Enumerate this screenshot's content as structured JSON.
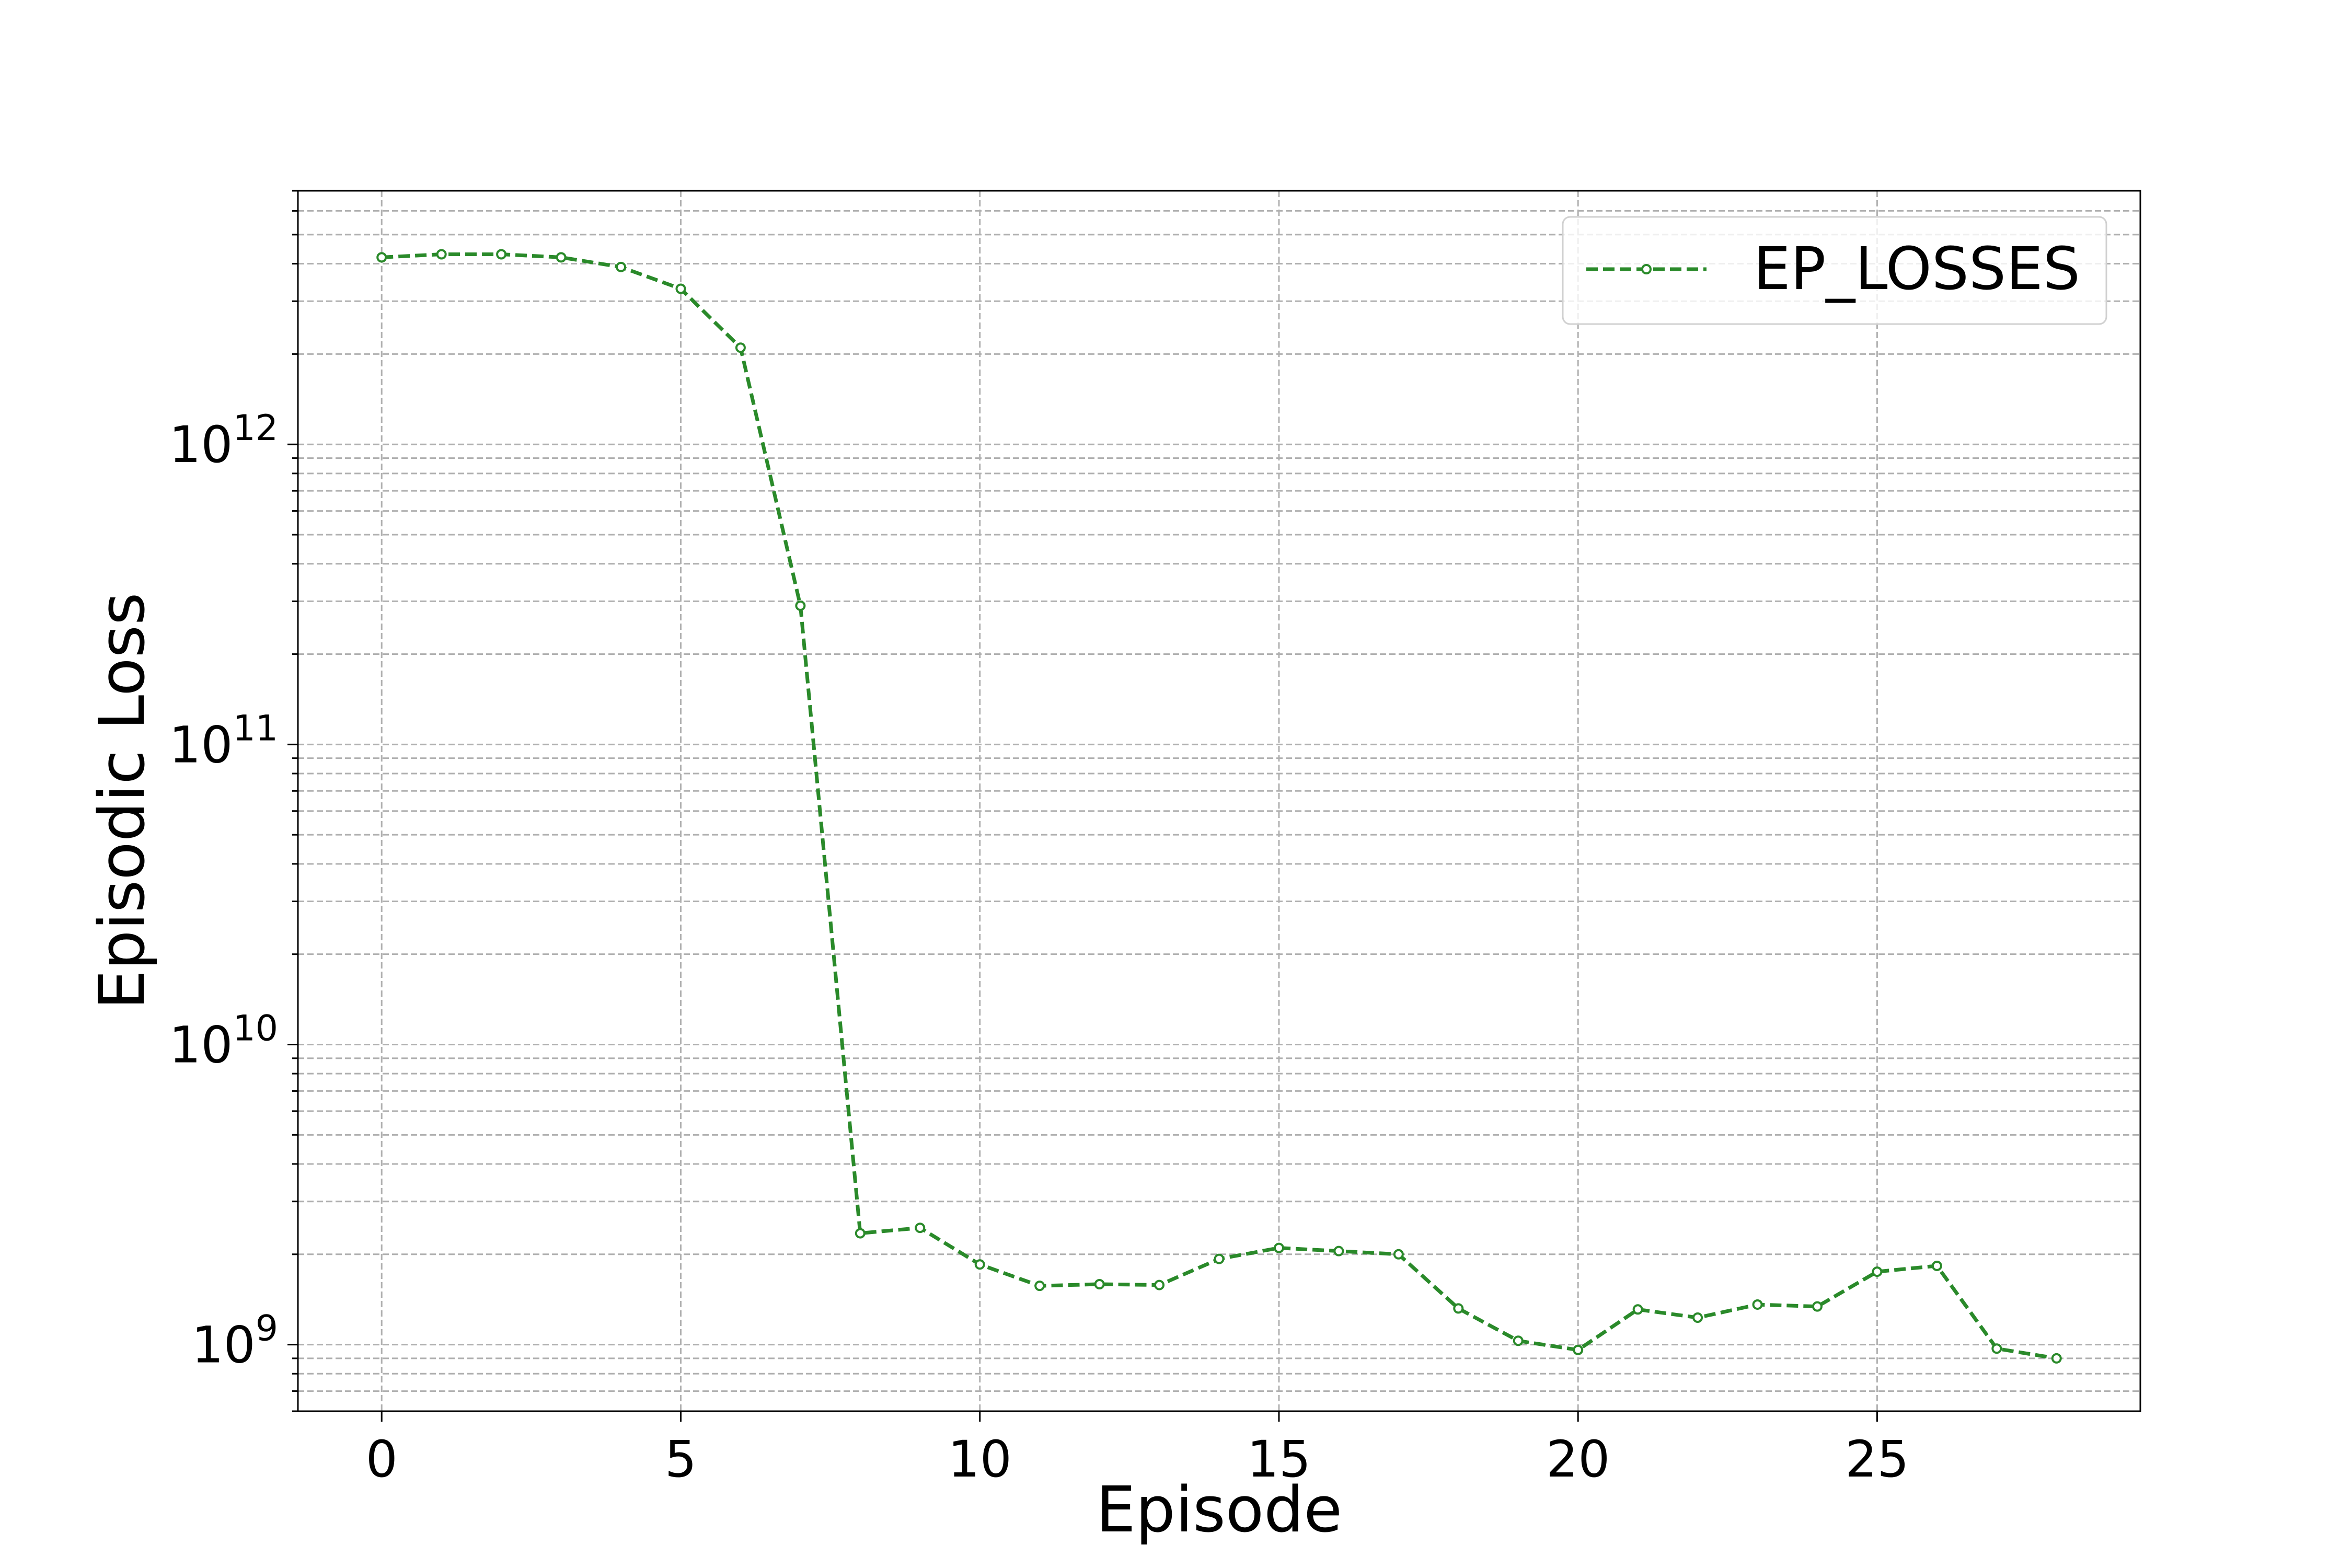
{
  "chart_data": {
    "type": "line",
    "xlabel": "Episode",
    "ylabel": "Episodic Loss",
    "xlim": [
      -1.4,
      29.4
    ],
    "ylim": [
      600000000,
      7000000000000
    ],
    "yscale": "log",
    "grid": "both (major and minor), dashed, light grey",
    "legend": {
      "position": "top-right",
      "entries": [
        "EP_LOSSES"
      ]
    },
    "x_ticks": [
      "0",
      "5",
      "10",
      "15",
      "20",
      "25"
    ],
    "y_ticks": [
      {
        "base": "10",
        "exp": "9"
      },
      {
        "base": "10",
        "exp": "10"
      },
      {
        "base": "10",
        "exp": "11"
      },
      {
        "base": "10",
        "exp": "12"
      }
    ],
    "series": [
      {
        "name": "EP_LOSSES",
        "color": "#2a8a2a",
        "linestyle": "dashed",
        "marker": "small-circle",
        "x": [
          0,
          1,
          2,
          3,
          4,
          5,
          6,
          7,
          8,
          9,
          10,
          11,
          12,
          13,
          14,
          15,
          16,
          17,
          18,
          19,
          20,
          21,
          22,
          23,
          24,
          25,
          26,
          27,
          28
        ],
        "y": [
          4200000000000,
          4300000000000,
          4300000000000,
          4200000000000,
          3900000000000,
          3300000000000,
          2100000000000,
          290000000000,
          2350000000,
          2450000000,
          1850000000,
          1570000000,
          1590000000,
          1580000000,
          1930000000,
          2100000000,
          2050000000,
          2000000000,
          1320000000,
          1030000000,
          960000000,
          1310000000,
          1230000000,
          1360000000,
          1340000000,
          1750000000,
          1830000000,
          970000000,
          900000000
        ]
      }
    ]
  }
}
